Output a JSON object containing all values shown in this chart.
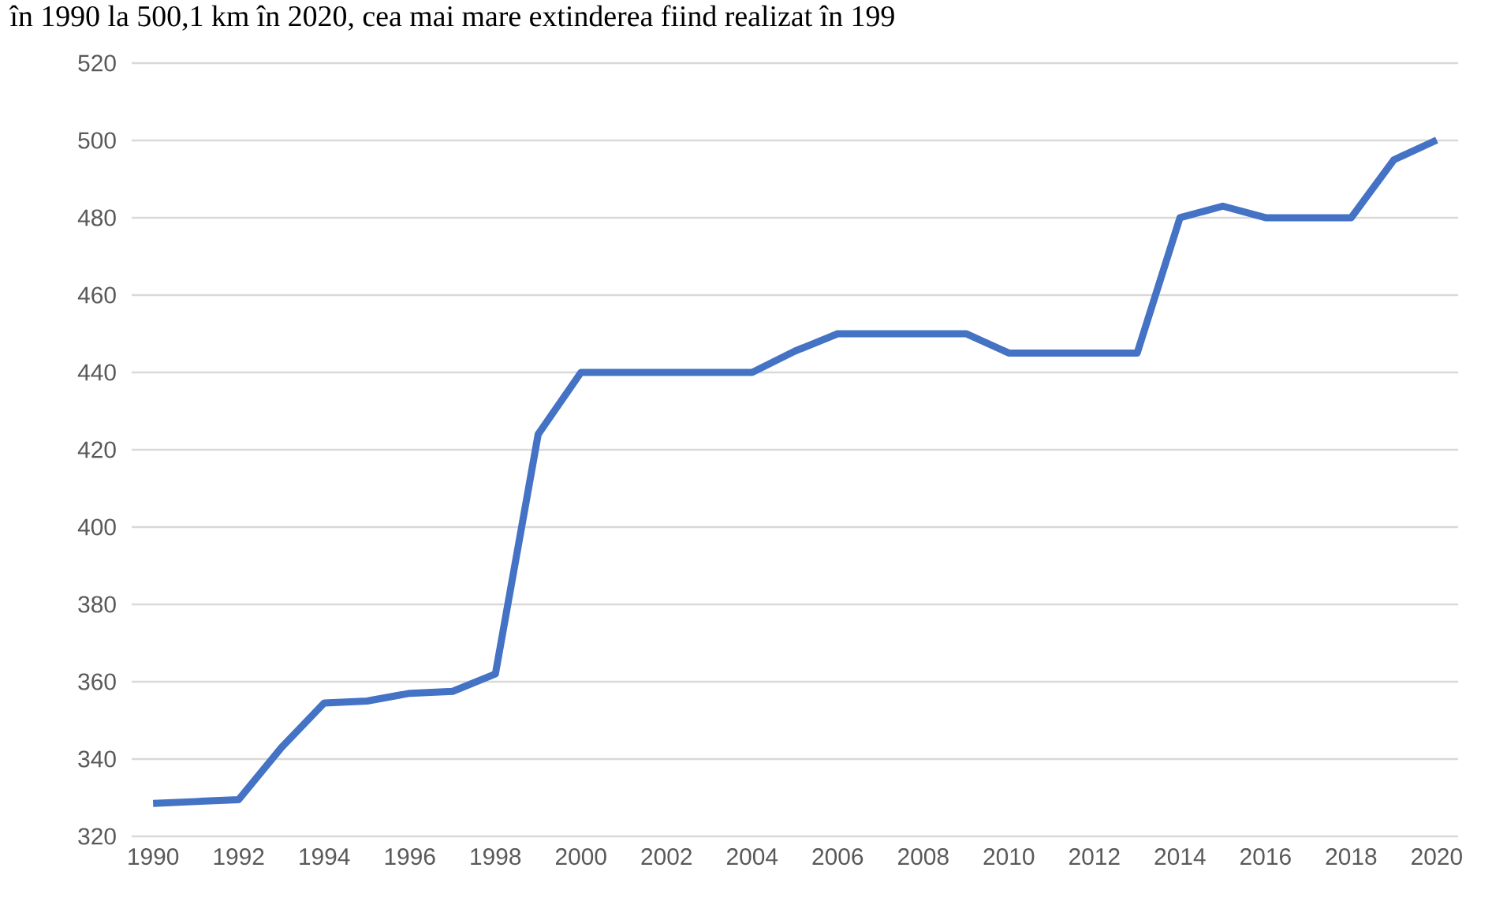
{
  "chart_data": {
    "type": "line",
    "annotations": [
      "în 1990 la 500,1 km în 2020, cea mai mare extinderea fiind realizat  în 199"
    ],
    "x": [
      1990,
      1991,
      1992,
      1993,
      1994,
      1995,
      1996,
      1997,
      1998,
      1999,
      2000,
      2001,
      2002,
      2003,
      2004,
      2005,
      2006,
      2007,
      2008,
      2009,
      2010,
      2011,
      2012,
      2013,
      2014,
      2015,
      2016,
      2017,
      2018,
      2019,
      2020
    ],
    "series": [
      {
        "color": "#4472c4",
        "values": [
          328.5,
          329,
          329.5,
          343,
          354.5,
          355,
          357,
          357.5,
          362,
          424,
          440,
          440,
          440,
          440,
          440,
          445.5,
          450,
          450,
          450,
          450,
          445,
          445,
          445,
          445,
          480,
          483,
          480,
          480,
          480,
          495,
          500.1
        ]
      }
    ],
    "xlim": [
      1989.5,
      2020.5
    ],
    "xticks": [
      1990,
      1992,
      1994,
      1996,
      1998,
      2000,
      2002,
      2004,
      2006,
      2008,
      2010,
      2012,
      2014,
      2016,
      2018,
      2020
    ],
    "ylim": [
      320,
      520
    ],
    "yticks": [
      320,
      340,
      360,
      380,
      400,
      420,
      440,
      460,
      480,
      500,
      520
    ],
    "grid": "y",
    "legend": false,
    "marker": "none",
    "line_style": "solid"
  }
}
